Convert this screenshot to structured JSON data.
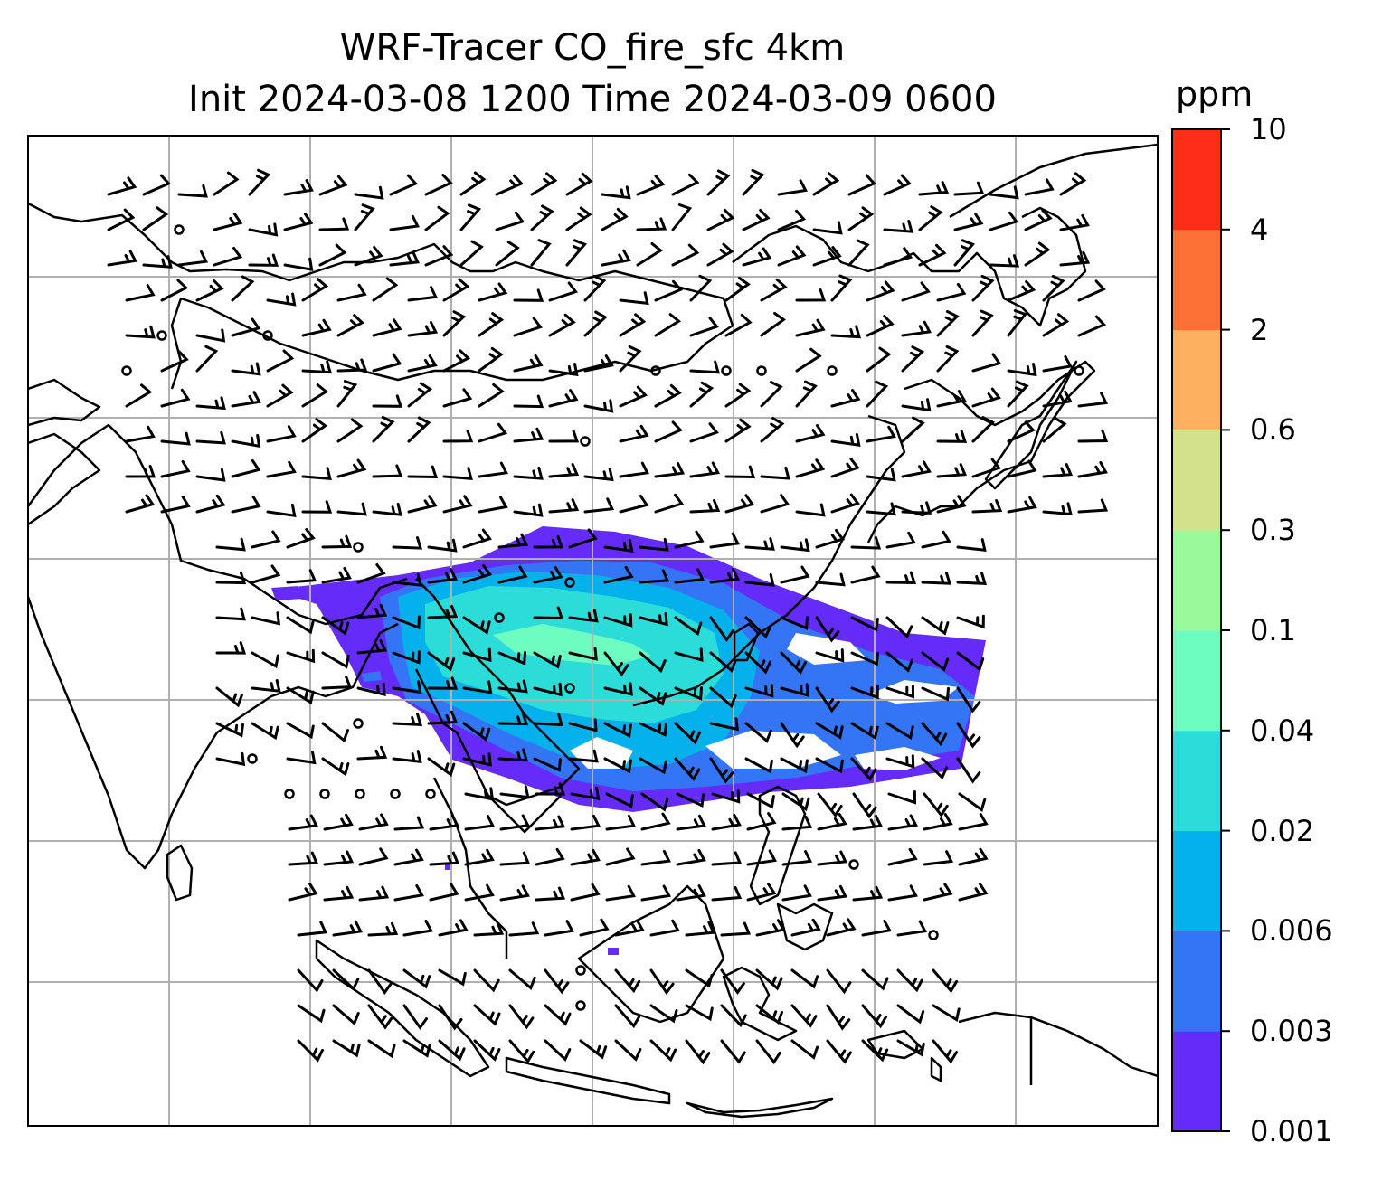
{
  "title": {
    "line1": "WRF-Tracer CO_fire_sfc 4km",
    "line2": "Init 2024-03-08 1200 Time 2024-03-09 0600"
  },
  "colorbar": {
    "unit": "ppm",
    "levels": [
      "0.001",
      "0.003",
      "0.006",
      "0.02",
      "0.04",
      "0.1",
      "0.3",
      "0.6",
      "2",
      "4",
      "10"
    ],
    "colors": [
      "#652cf9",
      "#3475f5",
      "#04b1ea",
      "#2bdcd8",
      "#6efdc1",
      "#9af99a",
      "#d2e18a",
      "#fdb05f",
      "#fd7036",
      "#fe2d19"
    ]
  },
  "map": {
    "gridlines": true,
    "features": [
      "coastlines",
      "country-borders",
      "wind-barbs",
      "CO-fire-tracer-plume"
    ]
  }
}
